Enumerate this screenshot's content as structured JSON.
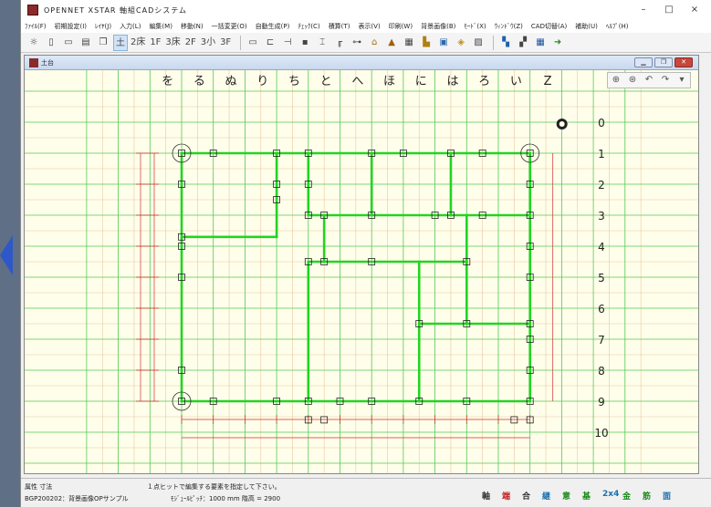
{
  "app": {
    "title": "OPENNET XSTAR 軸組CADシステム",
    "window_controls": [
      "–",
      "□",
      "×"
    ]
  },
  "menu": [
    "ﾌｧｲﾙ(F)",
    "初期設定(I)",
    "ﾚｲﾔ(J)",
    "入力(L)",
    "編集(M)",
    "移動(N)",
    "一括変更(O)",
    "自動生成(P)",
    "ﾁｪｯｸ(C)",
    "積算(T)",
    "表示(V)",
    "印刷(W)",
    "背景画像(B)",
    "ﾓｰﾄﾞ(X)",
    "ｳｨﾝﾄﾞｳ(Z)",
    "CAD切替(A)",
    "補助(U)",
    "ﾍﾙﾌﾟ(H)"
  ],
  "toolbar": {
    "floor_buttons": [
      "土",
      "2床",
      "1F",
      "3床",
      "2F",
      "3小",
      "3F"
    ],
    "selected_floor": "土"
  },
  "child_window": {
    "title": "土台"
  },
  "canvas": {
    "column_labels": [
      "を",
      "る",
      "ぬ",
      "り",
      "ち",
      "と",
      "へ",
      "ほ",
      "に",
      "は",
      "ろ",
      "い",
      "Z"
    ],
    "row_labels": [
      "0",
      "1",
      "2",
      "3",
      "4",
      "5",
      "6",
      "7",
      "8",
      "9",
      "10"
    ],
    "colors": {
      "background": "#fffeea",
      "grid_major": "#55c855",
      "grid_minor": "#e6c8a4",
      "beam": "#22d422",
      "dimension": "#cc3030"
    }
  },
  "status": {
    "left_top": "属性  寸法",
    "left_bottom": "BGP200202：背景画像OPサンプル",
    "message": "１点ヒットで編集する要素を指定して下さい。",
    "info": "ﾓｼﾞｭｰﾙﾋﾟｯﾁ：1000 mm  階高 = 2900",
    "icons": [
      "軸",
      "端",
      "合",
      "継",
      "意",
      "基",
      "2x4",
      "金",
      "筋",
      "面"
    ]
  }
}
